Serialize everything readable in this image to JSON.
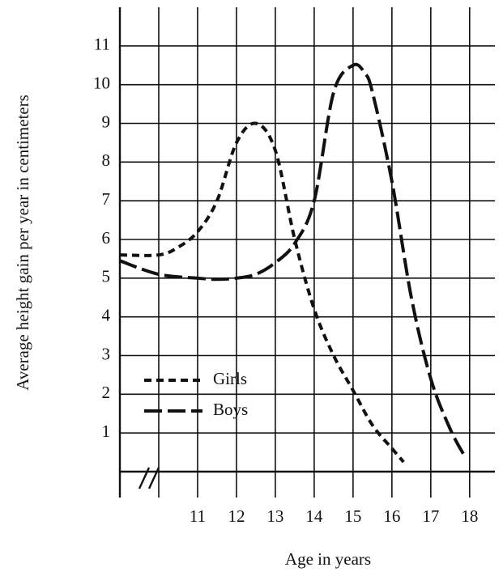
{
  "chart_data": {
    "type": "line",
    "x_label": "Age in years",
    "y_label": "Average height gain per year in centimeters",
    "xlim": [
      9,
      18.65
    ],
    "ylim": [
      0,
      12
    ],
    "xticks": [
      {
        "value": 10,
        "label": null
      },
      11,
      12,
      13,
      14,
      15,
      16,
      17,
      18
    ],
    "yticks": [
      1,
      2,
      3,
      4,
      5,
      6,
      7,
      8,
      9,
      10,
      11
    ],
    "grid": true,
    "axis_break": true,
    "legend": "lower left",
    "series": [
      {
        "name": "Girls",
        "color": "#111111",
        "dash": "short",
        "x": [
          9,
          10,
          10.5,
          11,
          11.5,
          12,
          12.5,
          13,
          13.5,
          14,
          14.5,
          15,
          15.5,
          16,
          16.3
        ],
        "values": [
          5.6,
          5.6,
          5.8,
          6.2,
          7.0,
          8.5,
          9.0,
          8.3,
          6.0,
          4.2,
          3.0,
          2.1,
          1.2,
          0.6,
          0.25
        ]
      },
      {
        "name": "Boys",
        "color": "#111111",
        "dash": "long",
        "x": [
          9,
          10,
          11,
          11.5,
          12,
          12.5,
          13,
          13.5,
          14,
          14.5,
          15,
          15.3,
          15.5,
          16,
          16.5,
          17,
          17.5,
          17.9
        ],
        "values": [
          5.45,
          5.1,
          5.0,
          4.97,
          5.0,
          5.1,
          5.4,
          5.9,
          7.0,
          9.8,
          10.5,
          10.3,
          9.8,
          7.5,
          4.5,
          2.4,
          1.1,
          0.35
        ]
      }
    ]
  }
}
